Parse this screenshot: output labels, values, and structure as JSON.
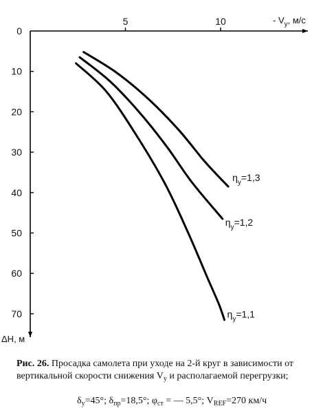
{
  "chart_data": {
    "type": "line",
    "xlabel": "- V",
    "xlabel_sub": "y",
    "xlabel_unit": ", м/с",
    "ylabel": "ΔH, м",
    "x_ticks": [
      5,
      10
    ],
    "y_ticks": [
      0,
      10,
      20,
      30,
      40,
      50,
      60,
      70
    ],
    "xlim": [
      0,
      15
    ],
    "ylim": [
      0,
      75
    ],
    "grid": false,
    "series": [
      {
        "name": "ηy=1,3",
        "label_main": "η",
        "label_sub": "y",
        "label_val": "=1,3",
        "color": "#000000",
        "points": [
          [
            2.8,
            5.2
          ],
          [
            4.5,
            10.2
          ],
          [
            6.2,
            16.8
          ],
          [
            7.8,
            24.5
          ],
          [
            9.2,
            32.5
          ],
          [
            10.4,
            38.5
          ]
        ]
      },
      {
        "name": "ηy=1,2",
        "label_main": "η",
        "label_sub": "y",
        "label_val": "=1,2",
        "color": "#000000",
        "points": [
          [
            2.6,
            6.5
          ],
          [
            4.2,
            12.5
          ],
          [
            5.8,
            20.5
          ],
          [
            7.2,
            28.8
          ],
          [
            8.5,
            37.5
          ],
          [
            10.1,
            46.5
          ]
        ]
      },
      {
        "name": "ηy=1,1",
        "label_main": "η",
        "label_sub": "y",
        "label_val": "=1,1",
        "color": "#000000",
        "points": [
          [
            2.4,
            8.0
          ],
          [
            4.0,
            15.0
          ],
          [
            5.6,
            26.0
          ],
          [
            7.1,
            38.0
          ],
          [
            8.3,
            50.0
          ],
          [
            9.3,
            61.0
          ],
          [
            9.9,
            67.5
          ],
          [
            10.2,
            71.5
          ]
        ]
      }
    ]
  },
  "caption": {
    "fig_label": "Рис. 26.",
    "text": "Просадка самолета при уходе на 2-й круг в зависимости от вертикальной скорости снижения V",
    "text_sub": "y",
    "text_end": " и располагаемой перегрузки;",
    "p1": "δ",
    "p1_sub": "у",
    "p1_val": "=45°; ",
    "p2": "δ",
    "p2_sub": "пр",
    "p2_val": "=18,5°; ",
    "p3": "φ",
    "p3_sub": "ст",
    "p3_val": " = — 5,5°;  ",
    "p4": "V",
    "p4_sub": "REF",
    "p4_val": "=270 км/ч"
  }
}
